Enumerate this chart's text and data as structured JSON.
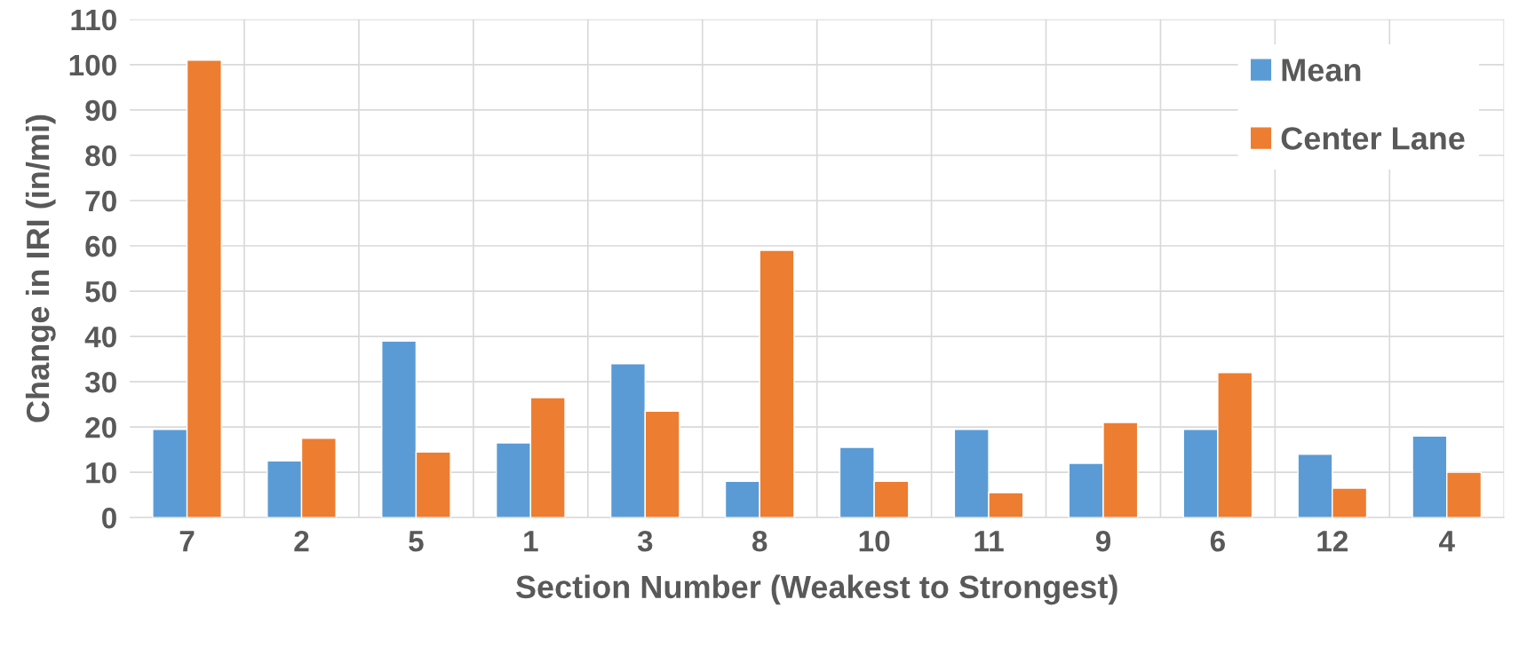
{
  "chart_data": {
    "type": "bar",
    "xlabel": "Section Number (Weakest to Strongest)",
    "ylabel": "Change in IRI (in/mi)",
    "categories": [
      "7",
      "2",
      "5",
      "1",
      "3",
      "8",
      "10",
      "11",
      "9",
      "6",
      "12",
      "4"
    ],
    "series": [
      {
        "name": "Mean",
        "color": "#5b9bd5",
        "values": [
          19.5,
          12.5,
          39,
          16.5,
          34,
          8,
          15.5,
          19.5,
          12,
          19.5,
          14,
          18
        ]
      },
      {
        "name": "Center Lane",
        "color": "#ed7d31",
        "values": [
          101,
          17.5,
          14.5,
          26.5,
          23.5,
          59,
          8,
          5.5,
          21,
          32,
          6.5,
          10
        ]
      }
    ],
    "ylim": [
      0,
      110
    ],
    "yticks": [
      0,
      10,
      20,
      30,
      40,
      50,
      60,
      70,
      80,
      90,
      100,
      110
    ],
    "grid": true,
    "legend": "top right"
  }
}
